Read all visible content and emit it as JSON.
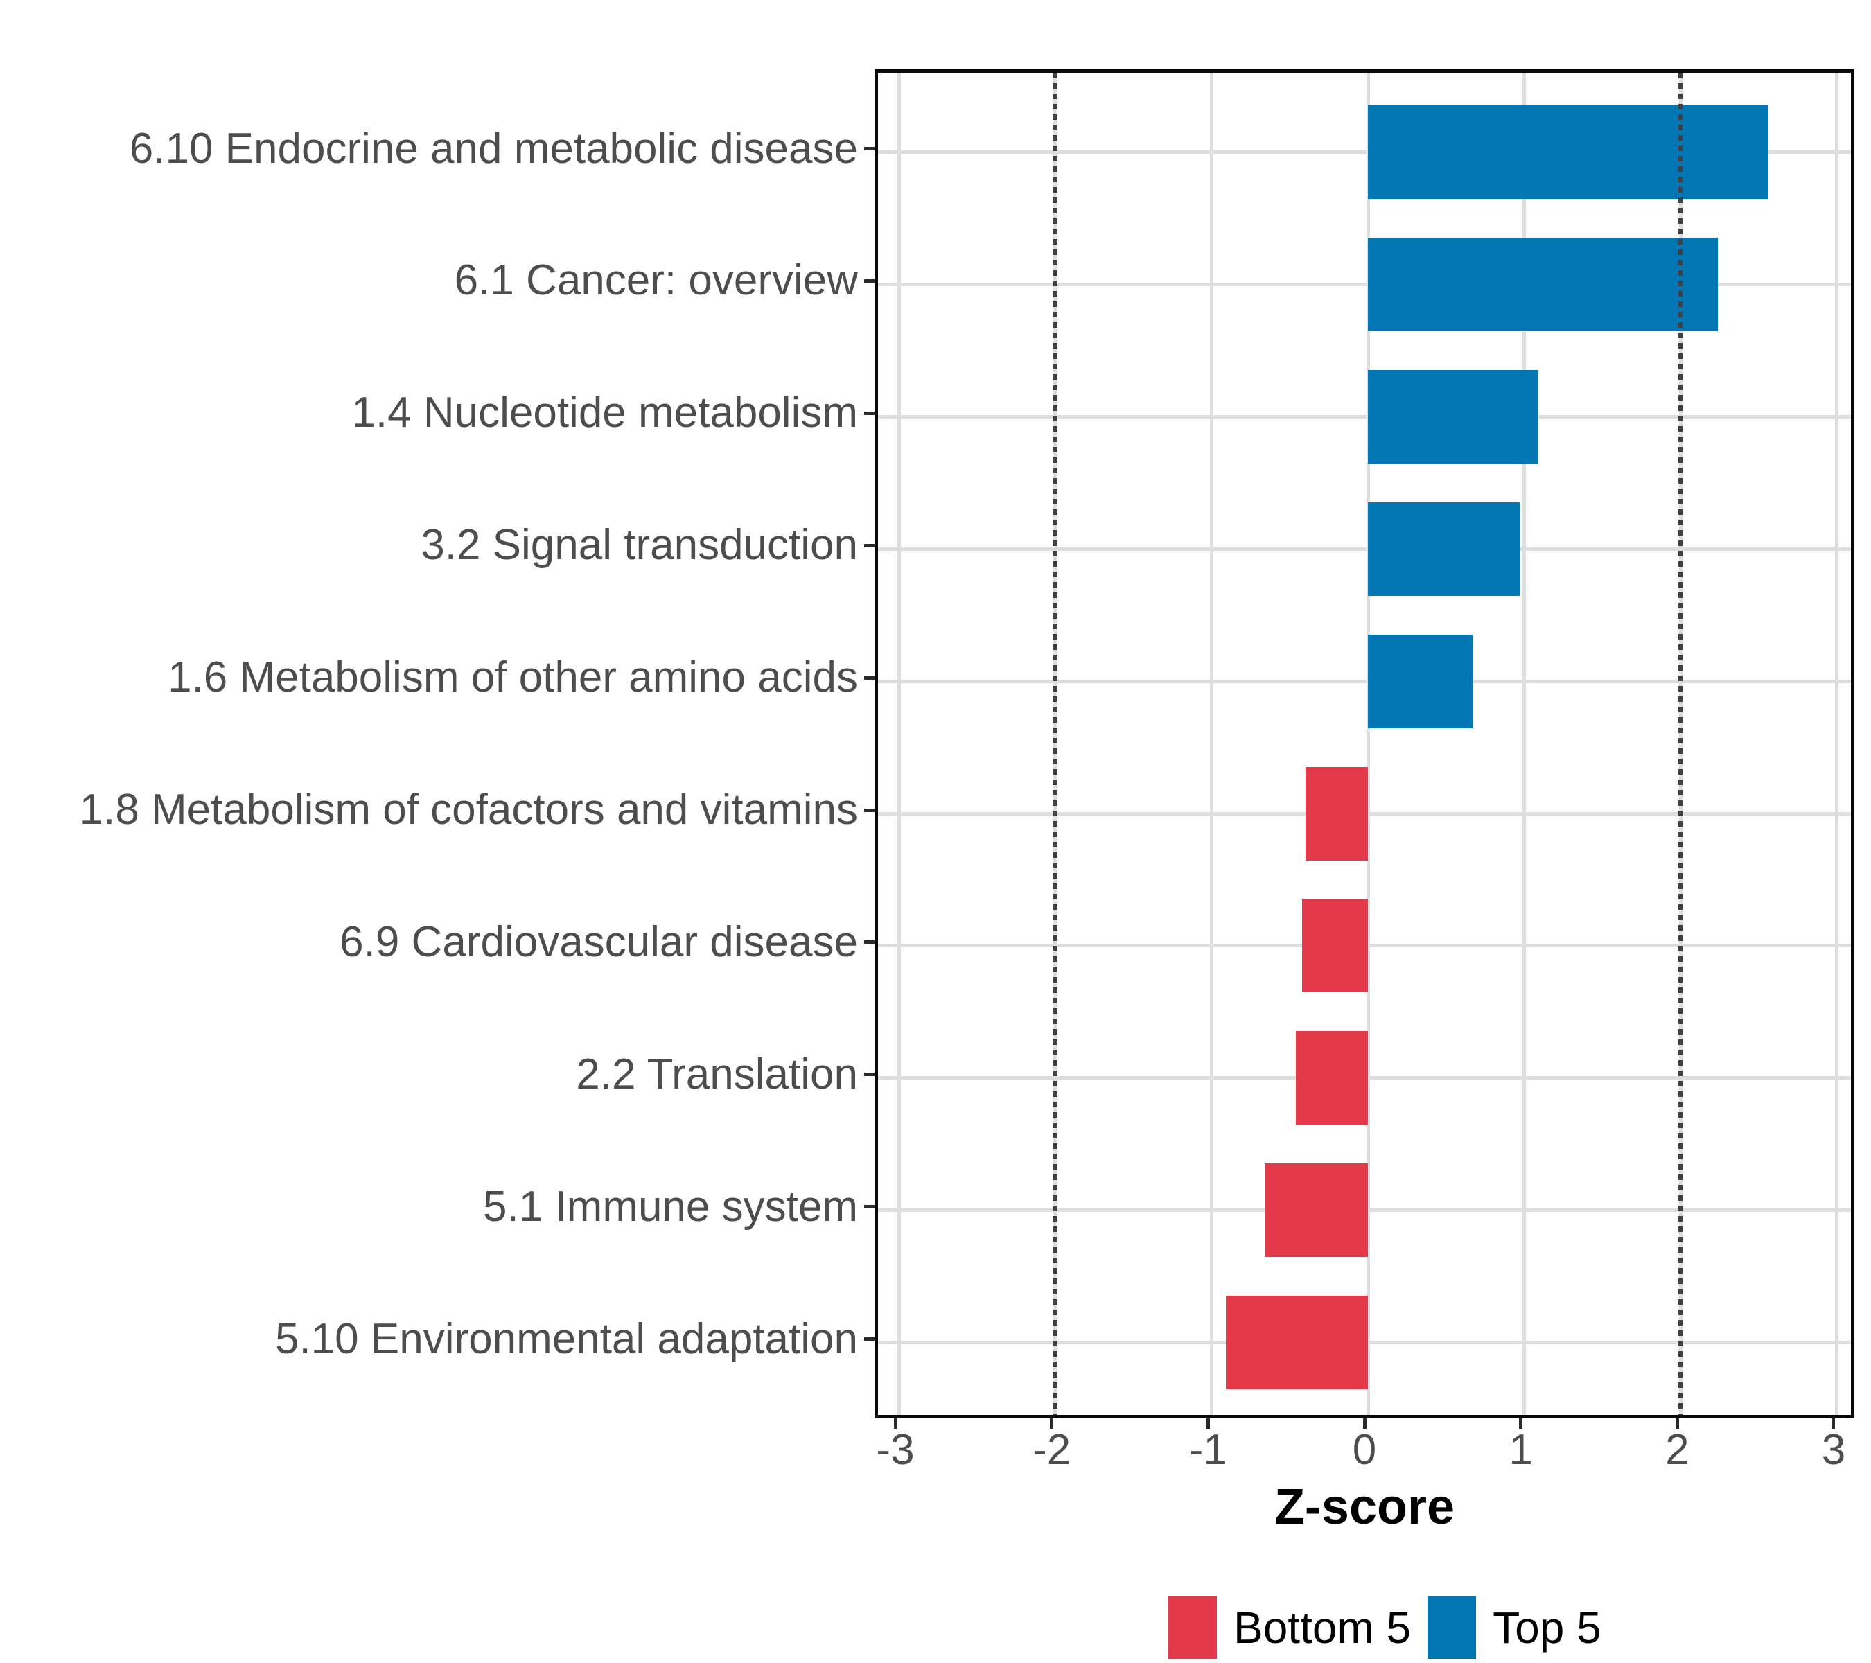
{
  "chart_data": {
    "type": "bar",
    "orientation": "horizontal",
    "xlabel": "Z-score",
    "xlim": [
      -3.133,
      3.133
    ],
    "x_ticks": [
      -3,
      -2,
      -1,
      0,
      1,
      2,
      3
    ],
    "x_tick_labels": [
      "-3",
      "-2",
      "-1",
      "0",
      "1",
      "2",
      "3"
    ],
    "dashed_vlines": [
      -2,
      2
    ],
    "grid": "major-only",
    "categories": [
      "6.10 Endocrine and metabolic disease",
      "6.1 Cancer: overview",
      "1.4 Nucleotide metabolism",
      "3.2 Signal transduction",
      "1.6 Metabolism of other amino acids",
      "1.8 Metabolism of cofactors and vitamins",
      "6.9 Cardiovascular disease",
      "2.2 Translation",
      "5.1 Immune system",
      "5.10 Environmental adaptation"
    ],
    "values": [
      2.56,
      2.24,
      1.09,
      0.97,
      0.67,
      -0.4,
      -0.42,
      -0.46,
      -0.66,
      -0.91
    ],
    "groups": [
      "top5",
      "top5",
      "top5",
      "top5",
      "top5",
      "bottom5",
      "bottom5",
      "bottom5",
      "bottom5",
      "bottom5"
    ],
    "series": [
      {
        "name": "Top 5",
        "color": "#0277B4",
        "values": [
          2.56,
          2.24,
          1.09,
          0.97,
          0.67
        ]
      },
      {
        "name": "Bottom 5",
        "color": "#E4394B",
        "values": [
          -0.4,
          -0.42,
          -0.46,
          -0.66,
          -0.91
        ]
      }
    ],
    "legend_position": "bottom"
  },
  "colors": {
    "top5": "#0277B4",
    "bottom5": "#E4394B",
    "gridline": "#dedede",
    "dashed_line": "#404040",
    "axis_text": "#4d4d4d",
    "panel_border": "#0a0a0a"
  },
  "axis": {
    "x_title": "Z-score"
  },
  "legend": {
    "items": [
      {
        "label": "Bottom 5",
        "color": "#E4394B"
      },
      {
        "label": "Top 5",
        "color": "#0277B4"
      }
    ]
  }
}
